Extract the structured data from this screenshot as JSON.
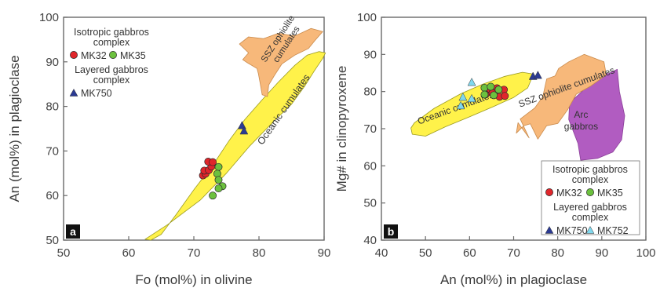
{
  "colors": {
    "yellow": "#fff24a",
    "yellow_stroke": "#9a9a20",
    "orange": "#f7b87a",
    "orange_stroke": "#c98a4b",
    "purple": "#b15cc1",
    "red": "#e0262b",
    "green": "#6cc13e",
    "blue": "#2b3a93",
    "cyan": "#7fd8ee"
  },
  "chart_data": [
    {
      "type": "scatter",
      "panel_label": "a",
      "xlabel": "Fo (mol%) in olivine",
      "ylabel": "An (mol%) in plagioclase",
      "xlim": [
        50,
        90
      ],
      "ylim": [
        50,
        100
      ],
      "xticks": [
        50,
        60,
        70,
        80,
        90
      ],
      "yticks": [
        50,
        60,
        70,
        80,
        90,
        100
      ],
      "grid": false,
      "legend": {
        "position": "top-left",
        "groups": [
          {
            "title_lines": [
              "Isotropic gabbros",
              "complex"
            ],
            "entries": [
              "MK32",
              "MK35"
            ]
          },
          {
            "title_lines": [
              "Layered gabbros",
              "complex"
            ],
            "entries": [
              "MK750"
            ]
          }
        ]
      },
      "fields": [
        {
          "name": "Oceanic cumulates",
          "label_lines": [
            "Oceanic cumulates"
          ],
          "color_key": "yellow",
          "outline": [
            [
              62.5,
              50.2
            ],
            [
              66,
              53.5
            ],
            [
              71,
              59
            ],
            [
              75,
              65
            ],
            [
              78.5,
              71
            ],
            [
              82.5,
              77
            ],
            [
              85,
              80.5
            ],
            [
              87,
              84.5
            ],
            [
              88.5,
              88
            ],
            [
              89.8,
              90.8
            ],
            [
              90.2,
              92
            ],
            [
              89.2,
              92.3
            ],
            [
              87.4,
              91.5
            ],
            [
              85.5,
              89.2
            ],
            [
              83,
              85.5
            ],
            [
              80.5,
              81.5
            ],
            [
              77.8,
              77
            ],
            [
              75.5,
              72.5
            ],
            [
              73,
              67
            ],
            [
              70,
              61.3
            ],
            [
              67.3,
              55.8
            ],
            [
              65,
              51.3
            ],
            [
              63.4,
              50
            ]
          ]
        },
        {
          "name": "SSZ ophiolite cumulates",
          "label_lines": [
            "SSZ ophiolite",
            "cumulates"
          ],
          "color_key": "orange",
          "outline": [
            [
              79.7,
              88.5
            ],
            [
              78.2,
              89.8
            ],
            [
              77.5,
              90.5
            ],
            [
              78.4,
              92
            ],
            [
              77,
              94
            ],
            [
              78.4,
              95.6
            ],
            [
              80.7,
              95.2
            ],
            [
              83,
              96.4
            ],
            [
              85.5,
              95.8
            ],
            [
              88,
              97.5
            ],
            [
              89.8,
              96.8
            ],
            [
              88.6,
              94.8
            ],
            [
              87.6,
              93
            ],
            [
              85.5,
              91.5
            ],
            [
              83.5,
              89.5
            ],
            [
              82.4,
              87
            ],
            [
              81.5,
              84.8
            ],
            [
              81.3,
              82.2
            ],
            [
              80.5,
              82.6
            ],
            [
              80.2,
              85
            ],
            [
              79.9,
              87.4
            ]
          ]
        }
      ],
      "series": [
        {
          "name": "MK32",
          "marker": "circle",
          "color_key": "red",
          "points": [
            [
              71.4,
              64.5
            ],
            [
              71.8,
              64.9
            ],
            [
              71.6,
              65.6
            ],
            [
              72.3,
              65.7
            ],
            [
              72.7,
              66.5
            ],
            [
              72.2,
              67.6
            ],
            [
              72.9,
              67.5
            ]
          ]
        },
        {
          "name": "MK35",
          "marker": "circle",
          "color_key": "green",
          "points": [
            [
              73.8,
              66.4
            ],
            [
              73.6,
              64.9
            ],
            [
              73.8,
              63.5
            ],
            [
              74.4,
              62.1
            ],
            [
              73.8,
              61.6
            ],
            [
              72.9,
              60
            ]
          ]
        },
        {
          "name": "MK750",
          "marker": "triangle",
          "color_key": "blue",
          "points": [
            [
              77.4,
              75.8
            ],
            [
              77.7,
              74.6
            ]
          ]
        }
      ]
    },
    {
      "type": "scatter",
      "panel_label": "b",
      "xlabel": "An (mol%) in plagioclase",
      "ylabel": "Mg# in clinopyroxene",
      "xlim": [
        40,
        100
      ],
      "ylim": [
        40,
        100
      ],
      "xticks": [
        40,
        50,
        60,
        70,
        80,
        90,
        100
      ],
      "yticks": [
        40,
        50,
        60,
        70,
        80,
        90,
        100
      ],
      "grid": false,
      "legend": {
        "position": "bottom-right",
        "groups": [
          {
            "title_lines": [
              "Isotropic gabbros",
              "complex"
            ],
            "entries": [
              "MK32",
              "MK35"
            ]
          },
          {
            "title_lines": [
              "Layered gabbros",
              "complex"
            ],
            "entries": [
              "MK750",
              "MK752"
            ]
          }
        ]
      },
      "fields": [
        {
          "name": "Arc gabbros",
          "label_lines": [
            "Arc",
            "gabbros"
          ],
          "color_key": "purple",
          "outline": [
            [
              85.2,
              61.5
            ],
            [
              84.6,
              66
            ],
            [
              82.5,
              72.5
            ],
            [
              82.7,
              77
            ],
            [
              85.5,
              80
            ],
            [
              88.5,
              85.5
            ],
            [
              91.5,
              84.8
            ],
            [
              93.5,
              86
            ],
            [
              94,
              80
            ],
            [
              95.2,
              73.5
            ],
            [
              94.5,
              67
            ],
            [
              92.5,
              63.7
            ],
            [
              89,
              62
            ]
          ]
        },
        {
          "name": "SSZ ophiolite cumulates",
          "label_lines": [
            "SSZ ophiolite cumulates"
          ],
          "color_key": "orange",
          "outline": [
            [
              71.5,
              72.6
            ],
            [
              74.8,
              75.6
            ],
            [
              76.6,
              78.6
            ],
            [
              77.5,
              83.4
            ],
            [
              79.4,
              84.2
            ],
            [
              80.2,
              86.2
            ],
            [
              82.5,
              88
            ],
            [
              86,
              90
            ],
            [
              90.5,
              88
            ],
            [
              91,
              84.5
            ],
            [
              87.5,
              81.5
            ],
            [
              84.2,
              79.3
            ],
            [
              82.2,
              75
            ],
            [
              80,
              71.4
            ],
            [
              77.5,
              70.8
            ],
            [
              75.5,
              67.2
            ],
            [
              73.8,
              71.3
            ],
            [
              72.3,
              70.8
            ],
            [
              70.6,
              68.8
            ],
            [
              71,
              71.6
            ],
            [
              73.5,
              67.5
            ]
          ]
        },
        {
          "name": "Oceanic cumulates",
          "label_lines": [
            "Oceanic cumulates"
          ],
          "color_key": "yellow",
          "outline": [
            [
              47.5,
              71.6
            ],
            [
              52,
              75.5
            ],
            [
              58,
              79.4
            ],
            [
              63,
              82
            ],
            [
              68,
              84.1
            ],
            [
              72,
              85.2
            ],
            [
              74.5,
              84.7
            ],
            [
              73.2,
              81
            ],
            [
              70,
              78.4
            ],
            [
              65.5,
              76
            ],
            [
              60,
              73.2
            ],
            [
              54.5,
              70.5
            ],
            [
              50,
              68
            ],
            [
              47,
              68.5
            ],
            [
              46.7,
              70.2
            ]
          ]
        }
      ],
      "series": [
        {
          "name": "MK32",
          "marker": "circle",
          "color_key": "red",
          "points": [
            [
              63.8,
              80.5
            ],
            [
              66.2,
              80.9
            ],
            [
              67.8,
              80.5
            ],
            [
              65.2,
              79.6
            ],
            [
              66.8,
              78.6
            ],
            [
              68,
              78.8
            ],
            [
              63.6,
              79.2
            ]
          ]
        },
        {
          "name": "MK35",
          "marker": "circle",
          "color_key": "green",
          "points": [
            [
              63.4,
              81
            ],
            [
              64.8,
              81.3
            ],
            [
              63.4,
              79.2
            ],
            [
              65.5,
              79
            ],
            [
              66.6,
              80.5
            ]
          ]
        },
        {
          "name": "MK750",
          "marker": "triangle",
          "color_key": "blue",
          "points": [
            [
              74.4,
              84.2
            ],
            [
              75.5,
              84.5
            ]
          ]
        },
        {
          "name": "MK752",
          "marker": "triangle",
          "color_key": "cyan",
          "points": [
            [
              60.5,
              82.6
            ],
            [
              58.5,
              78.6
            ],
            [
              58,
              76.3
            ],
            [
              60.5,
              78.2
            ]
          ]
        }
      ]
    }
  ]
}
